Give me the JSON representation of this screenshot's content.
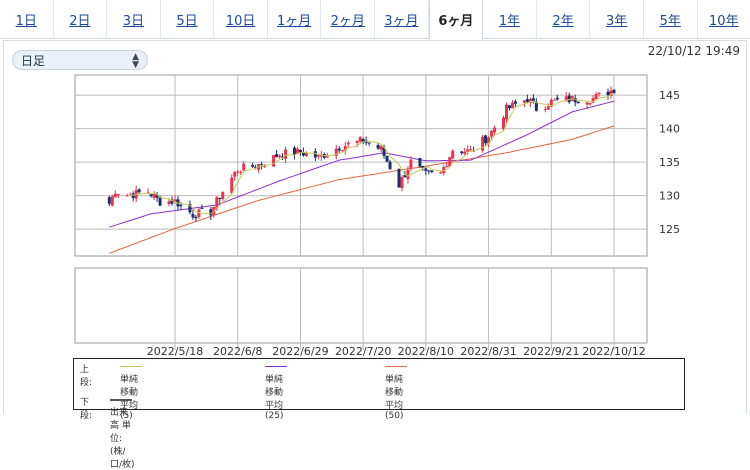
{
  "tabs": [
    {
      "label": "1日",
      "active": false
    },
    {
      "label": "2日",
      "active": false
    },
    {
      "label": "3日",
      "active": false
    },
    {
      "label": "5日",
      "active": false
    },
    {
      "label": "10日",
      "active": false
    },
    {
      "label": "1ヶ月",
      "active": false
    },
    {
      "label": "2ヶ月",
      "active": false
    },
    {
      "label": "3ヶ月",
      "active": false
    },
    {
      "label": "6ヶ月",
      "active": true
    },
    {
      "label": "1年",
      "active": false
    },
    {
      "label": "2年",
      "active": false
    },
    {
      "label": "3年",
      "active": false
    },
    {
      "label": "5年",
      "active": false
    },
    {
      "label": "10年",
      "active": false
    }
  ],
  "period_select": {
    "value": "日足"
  },
  "timestamp": "22/10/12 19:49",
  "colors": {
    "up": "#e8354c",
    "down": "#1a2f6b",
    "ma5": "#c8c85a",
    "ma25": "#8a2fd0",
    "ma50": "#e0683c",
    "volume": "#555555"
  },
  "legend": {
    "upper_label": "上段:",
    "ma5": "単純移動平均(5)",
    "ma25": "単純移動平均(25)",
    "ma50": "単純移動平均(50)",
    "lower_label": "下段:",
    "volume": "出来高 単位:(株/口/枚)"
  },
  "chart_data": {
    "type": "candlestick",
    "ylim": [
      121,
      148
    ],
    "yticks": [
      125,
      130,
      135,
      140,
      145
    ],
    "xticks": [
      "2022/5/18",
      "2022/6/8",
      "2022/6/29",
      "2022/7/20",
      "2022/8/10",
      "2022/8/31",
      "2022/9/21",
      "2022/10/12"
    ],
    "x_range": [
      "2022/4/26",
      "2022/10/12"
    ],
    "grid": true,
    "ohlc_anchors": [
      {
        "date": "2022/4/26",
        "close": 128.8
      },
      {
        "date": "2022/4/28",
        "close": 130.8
      },
      {
        "date": "2022/5/2",
        "close": 130.1
      },
      {
        "date": "2022/5/9",
        "close": 130.6
      },
      {
        "date": "2022/5/13",
        "close": 129.1
      },
      {
        "date": "2022/5/18",
        "close": 129.2
      },
      {
        "date": "2022/5/24",
        "close": 127.2
      },
      {
        "date": "2022/5/30",
        "close": 127.6
      },
      {
        "date": "2022/6/3",
        "close": 130.7
      },
      {
        "date": "2022/6/8",
        "close": 133.9
      },
      {
        "date": "2022/6/13",
        "close": 134.4
      },
      {
        "date": "2022/6/17",
        "close": 134.9
      },
      {
        "date": "2022/6/22",
        "close": 136.2
      },
      {
        "date": "2022/6/29",
        "close": 136.5
      },
      {
        "date": "2022/7/5",
        "close": 135.7
      },
      {
        "date": "2022/7/12",
        "close": 137.3
      },
      {
        "date": "2022/7/20",
        "close": 138.2
      },
      {
        "date": "2022/7/26",
        "close": 136.9
      },
      {
        "date": "2022/8/1",
        "close": 131.6
      },
      {
        "date": "2022/8/5",
        "close": 135.0
      },
      {
        "date": "2022/8/10",
        "close": 133.1
      },
      {
        "date": "2022/8/15",
        "close": 133.3
      },
      {
        "date": "2022/8/19",
        "close": 136.9
      },
      {
        "date": "2022/8/25",
        "close": 136.6
      },
      {
        "date": "2022/8/31",
        "close": 138.9
      },
      {
        "date": "2022/9/6",
        "close": 142.9
      },
      {
        "date": "2022/9/13",
        "close": 144.5
      },
      {
        "date": "2022/9/16",
        "close": 143.0
      },
      {
        "date": "2022/9/21",
        "close": 144.0
      },
      {
        "date": "2022/9/28",
        "close": 144.4
      },
      {
        "date": "2022/10/5",
        "close": 144.5
      },
      {
        "date": "2022/10/12",
        "close": 145.9
      }
    ],
    "ma25_anchors": [
      {
        "date": "2022/4/26",
        "value": 125.3
      },
      {
        "date": "2022/5/10",
        "value": 127.3
      },
      {
        "date": "2022/6/1",
        "value": 128.6
      },
      {
        "date": "2022/6/22",
        "value": 132.2
      },
      {
        "date": "2022/7/12",
        "value": 135.3
      },
      {
        "date": "2022/7/27",
        "value": 136.4
      },
      {
        "date": "2022/8/10",
        "value": 135.2
      },
      {
        "date": "2022/8/25",
        "value": 135.3
      },
      {
        "date": "2022/9/13",
        "value": 139.1
      },
      {
        "date": "2022/9/28",
        "value": 142.5
      },
      {
        "date": "2022/10/12",
        "value": 144.1
      }
    ],
    "ma50_anchors": [
      {
        "date": "2022/4/26",
        "value": 121.4
      },
      {
        "date": "2022/5/18",
        "value": 125.1
      },
      {
        "date": "2022/6/15",
        "value": 129.3
      },
      {
        "date": "2022/7/12",
        "value": 132.4
      },
      {
        "date": "2022/8/10",
        "value": 134.4
      },
      {
        "date": "2022/9/6",
        "value": 136.4
      },
      {
        "date": "2022/9/28",
        "value": 138.4
      },
      {
        "date": "2022/10/12",
        "value": 140.4
      }
    ],
    "volume": {
      "shown": false,
      "values": []
    }
  }
}
